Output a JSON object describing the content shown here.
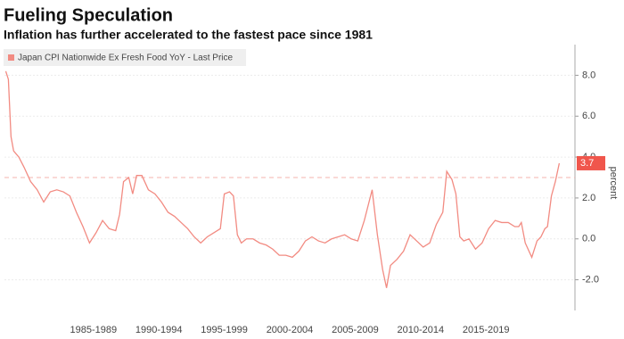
{
  "chart_data": {
    "type": "line",
    "title": "Fueling Speculation",
    "subtitle": "Inflation has further accelerated to the fastest pace since 1981",
    "y_label": "percent",
    "x": [
      1980.6,
      1980.8,
      1981.0,
      1981.2,
      1981.6,
      1982.0,
      1982.5,
      1983.0,
      1983.5,
      1984.0,
      1984.5,
      1985.0,
      1985.5,
      1986.0,
      1986.5,
      1987.0,
      1987.5,
      1988.0,
      1988.5,
      1989.0,
      1989.3,
      1989.6,
      1990.0,
      1990.3,
      1990.6,
      1991.0,
      1991.5,
      1992.0,
      1992.5,
      1993.0,
      1993.5,
      1994.0,
      1994.5,
      1995.0,
      1995.5,
      1996.0,
      1996.5,
      1997.0,
      1997.3,
      1997.7,
      1998.0,
      1998.3,
      1998.6,
      1999.0,
      1999.5,
      2000.0,
      2000.5,
      2001.0,
      2001.5,
      2002.0,
      2002.5,
      2003.0,
      2003.5,
      2004.0,
      2004.5,
      2005.0,
      2005.5,
      2006.0,
      2006.5,
      2007.0,
      2007.5,
      2008.0,
      2008.6,
      2009.0,
      2009.4,
      2009.7,
      2010.0,
      2010.5,
      2011.0,
      2011.5,
      2012.0,
      2012.5,
      2013.0,
      2013.5,
      2014.0,
      2014.3,
      2014.7,
      2015.0,
      2015.3,
      2015.6,
      2016.0,
      2016.5,
      2017.0,
      2017.5,
      2018.0,
      2018.5,
      2019.0,
      2019.5,
      2019.8,
      2020.0,
      2020.3,
      2020.8,
      2021.2,
      2021.5,
      2021.8,
      2022.0,
      2022.3,
      2022.6,
      2022.9
    ],
    "series": [
      {
        "name": "Japan CPI Nationwide Ex Fresh Food YoY - Last Price",
        "color": "#f28b82",
        "values": [
          8.2,
          7.8,
          5.0,
          4.3,
          4.0,
          3.5,
          2.8,
          2.4,
          1.8,
          2.3,
          2.4,
          2.3,
          2.1,
          1.3,
          0.6,
          -0.2,
          0.3,
          0.9,
          0.5,
          0.4,
          1.2,
          2.8,
          3.0,
          2.2,
          3.1,
          3.1,
          2.4,
          2.2,
          1.8,
          1.3,
          1.1,
          0.8,
          0.5,
          0.1,
          -0.2,
          0.1,
          0.3,
          0.5,
          2.2,
          2.3,
          2.1,
          0.2,
          -0.2,
          0.0,
          0.0,
          -0.2,
          -0.3,
          -0.5,
          -0.8,
          -0.8,
          -0.9,
          -0.6,
          -0.1,
          0.1,
          -0.1,
          -0.2,
          0.0,
          0.1,
          0.2,
          0.0,
          -0.1,
          0.9,
          2.4,
          0.2,
          -1.5,
          -2.4,
          -1.3,
          -1.0,
          -0.6,
          0.2,
          -0.1,
          -0.4,
          -0.2,
          0.7,
          1.3,
          3.3,
          2.9,
          2.2,
          0.1,
          -0.1,
          0.0,
          -0.5,
          -0.2,
          0.5,
          0.9,
          0.8,
          0.8,
          0.6,
          0.6,
          0.8,
          -0.2,
          -0.9,
          -0.1,
          0.1,
          0.5,
          0.6,
          2.1,
          2.8,
          3.7
        ]
      }
    ],
    "last_value_label": "3.7",
    "last_value_color": "#f0564c",
    "reference_line": 3,
    "xlim": [
      1980.5,
      2024.1
    ],
    "xticks": [
      {
        "value": 1987.3,
        "label": "1985-1989"
      },
      {
        "value": 1992.3,
        "label": "1990-1994"
      },
      {
        "value": 1997.3,
        "label": "1995-1999"
      },
      {
        "value": 2002.3,
        "label": "2000-2004"
      },
      {
        "value": 2007.3,
        "label": "2005-2009"
      },
      {
        "value": 2012.3,
        "label": "2010-2014"
      },
      {
        "value": 2017.3,
        "label": "2015-2019"
      }
    ],
    "ylim": [
      -3.5,
      9.5
    ],
    "yticks": [
      {
        "value": -2,
        "label": "-2.0"
      },
      {
        "value": 0,
        "label": "0.0"
      },
      {
        "value": 2,
        "label": "2.0"
      },
      {
        "value": 4,
        "label": "4.0"
      },
      {
        "value": 6,
        "label": "6.0"
      },
      {
        "value": 8,
        "label": "8.0"
      }
    ],
    "grid": true
  }
}
